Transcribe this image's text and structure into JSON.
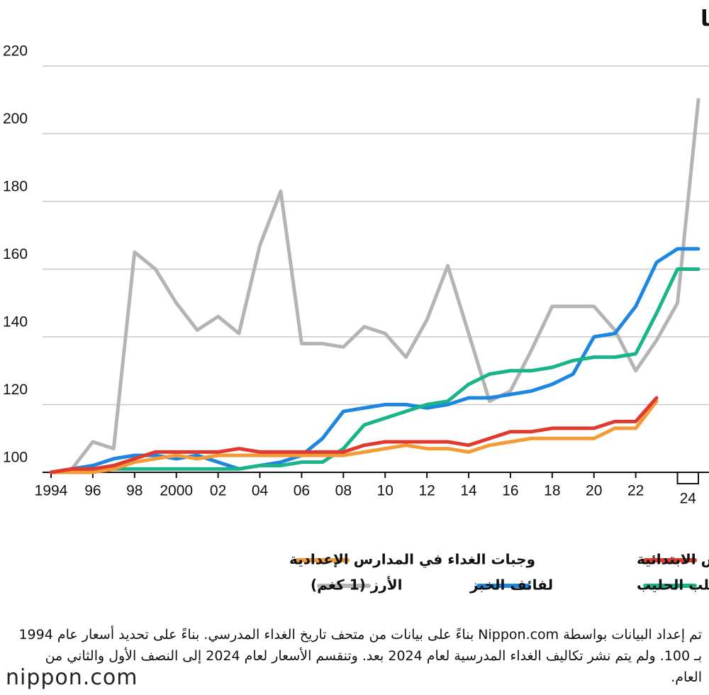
{
  "chart_data": {
    "type": "line",
    "title": "الوجبات المدرسة وتكلفة المكونات في محافظة سايتما",
    "categories": [
      "1994",
      null,
      "96",
      null,
      "98",
      null,
      "2000",
      null,
      "02",
      null,
      "04",
      null,
      "06",
      null,
      "08",
      null,
      "10",
      null,
      "12",
      null,
      "14",
      null,
      "16",
      null,
      "18",
      null,
      "20",
      null,
      "22",
      null,
      "24",
      null
    ],
    "series": [
      {
        "name": "وجبات الغداء في المدارس الابتدائية",
        "color": "#e03a2f",
        "values": [
          100,
          101,
          101,
          102,
          104,
          106,
          106,
          106,
          106,
          107,
          106,
          106,
          106,
          106,
          106,
          108,
          109,
          109,
          109,
          109,
          108,
          110,
          112,
          112,
          113,
          113,
          113,
          115,
          115,
          122,
          null,
          null
        ]
      },
      {
        "name": "وجبات الغداء في المدارس الإعدادية",
        "color": "#f29b37",
        "values": [
          100,
          100,
          100,
          101,
          103,
          104,
          105,
          104,
          105,
          105,
          105,
          105,
          105,
          105,
          105,
          106,
          107,
          108,
          107,
          107,
          106,
          108,
          109,
          110,
          110,
          110,
          110,
          113,
          113,
          121,
          null,
          null
        ]
      },
      {
        "name": "علب الحليب",
        "color": "#1ab48a",
        "values": [
          100,
          101,
          101,
          101,
          101,
          101,
          101,
          101,
          101,
          101,
          102,
          102,
          103,
          103,
          107,
          114,
          116,
          118,
          120,
          121,
          126,
          129,
          130,
          130,
          131,
          133,
          134,
          134,
          135,
          147,
          160,
          160
        ]
      },
      {
        "name": "لفائف الخبز",
        "color": "#1d86e0",
        "values": [
          100,
          101,
          102,
          104,
          105,
          105,
          104,
          105,
          103,
          101,
          102,
          103,
          105,
          110,
          118,
          119,
          120,
          120,
          119,
          120,
          122,
          122,
          123,
          124,
          126,
          129,
          140,
          141,
          149,
          162,
          166,
          166
        ]
      },
      {
        "name": "الأرز (1 كغم)",
        "color": "#b4b4b4",
        "values": [
          100,
          101,
          109,
          107,
          165,
          160,
          150,
          142,
          146,
          141,
          167,
          183,
          138,
          138,
          137,
          143,
          141,
          134,
          145,
          161,
          141,
          121,
          124,
          136,
          149,
          149,
          149,
          142,
          130,
          139,
          150,
          210
        ]
      }
    ],
    "ylim": [
      100,
      220
    ],
    "yticks": [
      100,
      120,
      140,
      160,
      180,
      200,
      220
    ],
    "grid": true,
    "note": "تم إعداد البيانات بواسطة Nippon.com بناءً على بيانات من متحف تاريخ الغداء المدرسي. بناءً على تحديد أسعار عام 1994 بـ 100. ولم يتم نشر تكاليف الغداء المدرسية لعام 2024 بعد. وتنقسم الأسعار لعام 2024 إلى النصف الأول والثاني من العام.",
    "logo": "nippon.com"
  }
}
